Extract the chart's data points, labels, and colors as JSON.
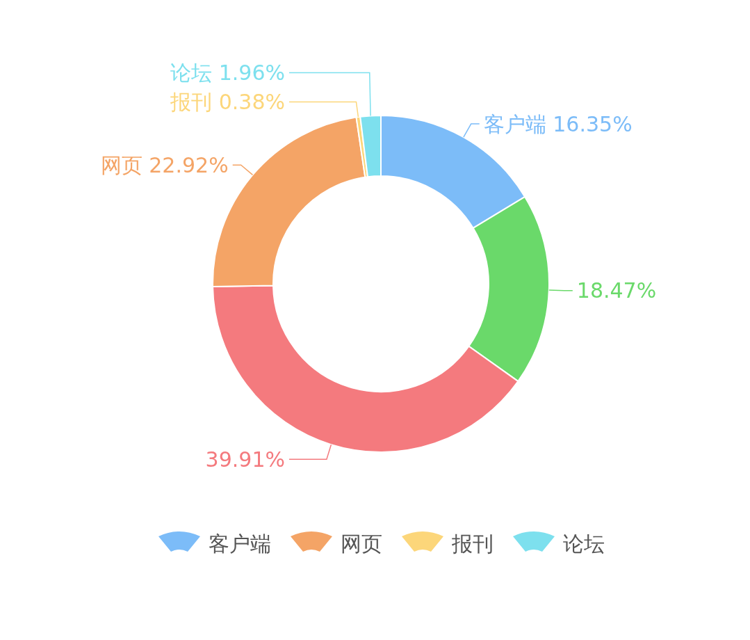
{
  "chart_data": {
    "type": "donut",
    "categories": [
      "客户端",
      null,
      null,
      "网页",
      "报刊",
      "论坛"
    ],
    "values": [
      16.35,
      18.47,
      39.91,
      22.92,
      0.38,
      1.96
    ],
    "value_labels": [
      "16.35%",
      "18.47%",
      "39.91%",
      "22.92%",
      "0.38%",
      "1.96%"
    ],
    "colors": [
      "#7cbcf8",
      "#6ad96a",
      "#f47a7e",
      "#f4a466",
      "#fcd67a",
      "#7de0ee"
    ],
    "legend": "bottom"
  }
}
